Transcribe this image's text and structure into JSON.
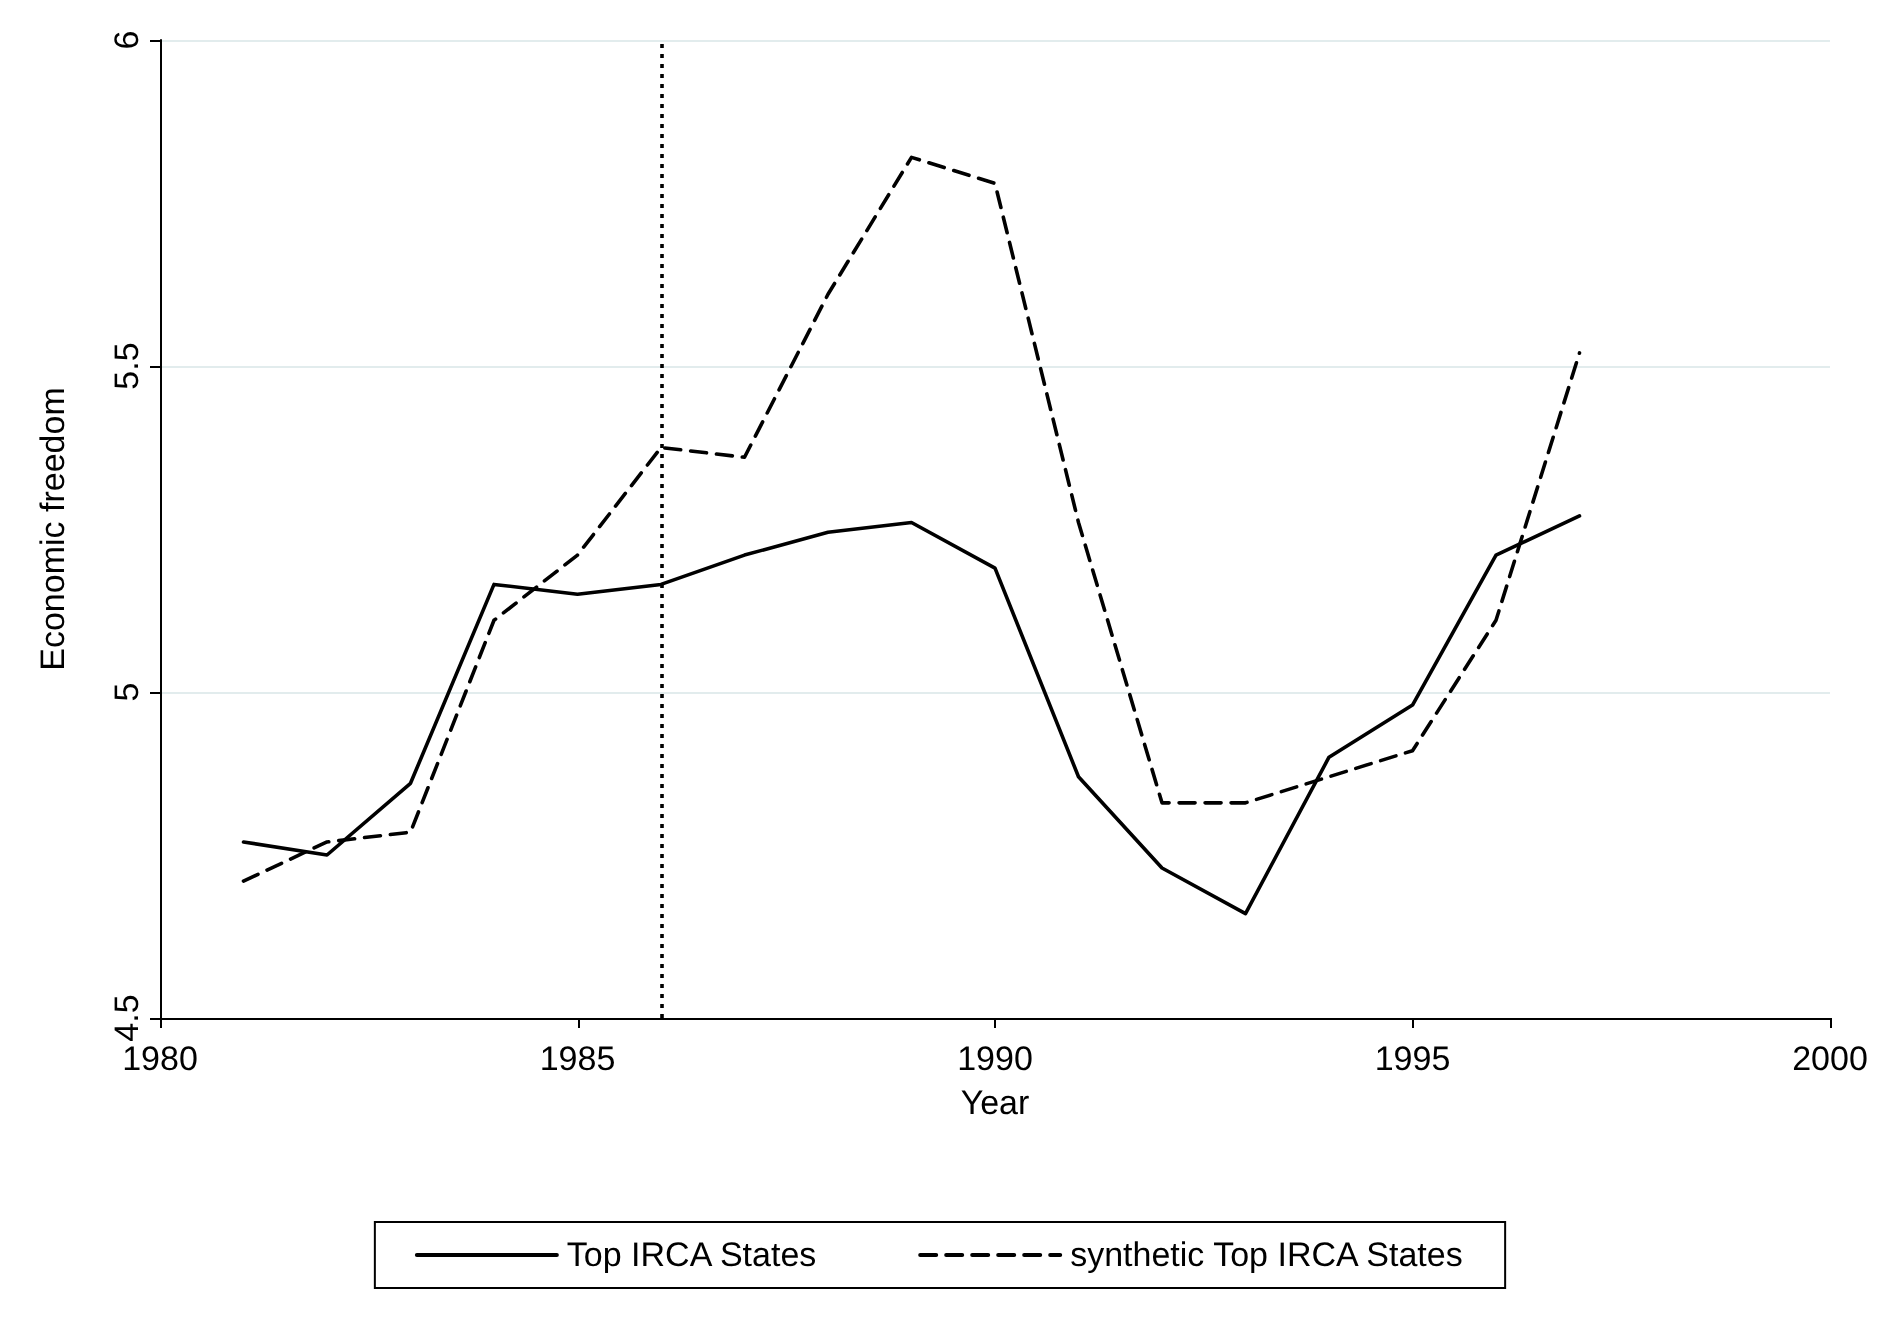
{
  "chart_data": {
    "type": "line",
    "xlabel": "Year",
    "ylabel": "Economic freedom",
    "x": [
      1981,
      1982,
      1983,
      1984,
      1985,
      1986,
      1987,
      1988,
      1989,
      1990,
      1991,
      1992,
      1993,
      1994,
      1995,
      1996,
      1997
    ],
    "series": [
      {
        "name": "Top IRCA States",
        "color": "#000000",
        "line_style": "solid",
        "values": [
          4.77,
          4.75,
          4.86,
          5.165,
          5.15,
          5.165,
          5.21,
          5.245,
          5.26,
          5.19,
          4.87,
          4.73,
          4.66,
          4.9,
          4.98,
          5.21,
          5.27
        ]
      },
      {
        "name": "synthetic Top IRCA States",
        "color": "#000000",
        "line_style": "dashed",
        "values": [
          4.71,
          4.77,
          4.785,
          5.11,
          5.21,
          5.375,
          5.36,
          5.61,
          5.82,
          5.78,
          5.26,
          4.83,
          4.83,
          4.87,
          4.91,
          5.11,
          5.52
        ]
      }
    ],
    "xlim": [
      1980,
      2000
    ],
    "xticks": [
      1980,
      1985,
      1990,
      1995,
      2000
    ],
    "ylim": [
      4.5,
      6
    ],
    "yticks": [
      4.5,
      5,
      5.5,
      6
    ],
    "ref_lines": [
      {
        "axis": "x",
        "value": 1986,
        "color": "#000000",
        "line_style": "dotted"
      }
    ],
    "grid": "y",
    "legend": "bottom",
    "marker": "none"
  }
}
